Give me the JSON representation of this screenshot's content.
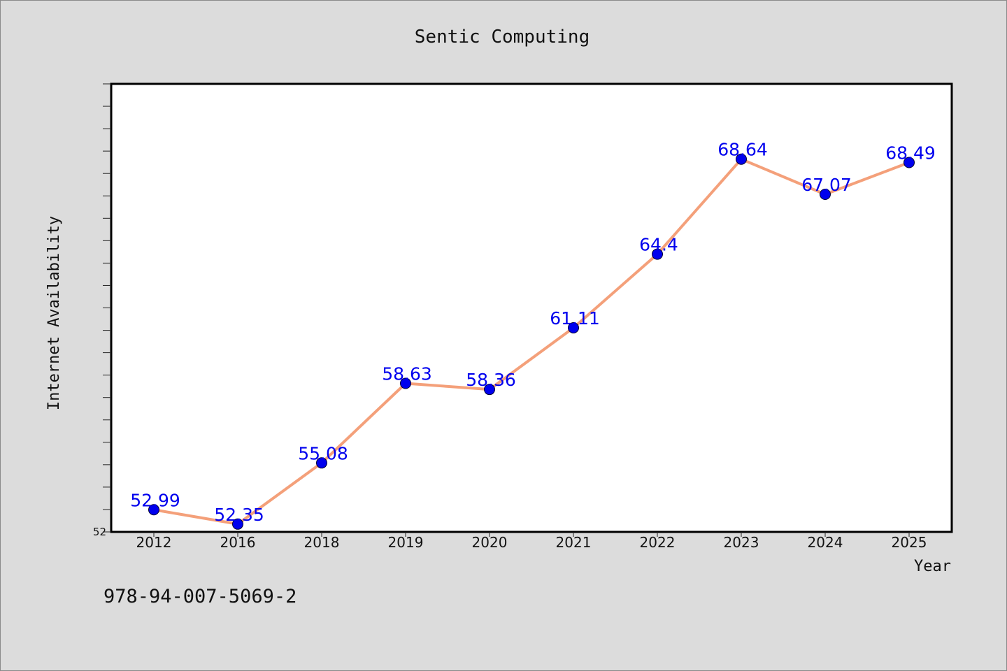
{
  "chart_data": {
    "type": "line",
    "title": "Sentic Computing",
    "xlabel": "Year",
    "ylabel": "Internet Availability",
    "categories": [
      "2012",
      "2016",
      "2018",
      "2019",
      "2020",
      "2021",
      "2022",
      "2023",
      "2024",
      "2025"
    ],
    "series": [
      {
        "values": [
          52.99,
          52.35,
          55.08,
          58.63,
          58.36,
          61.11,
          64.4,
          68.64,
          67.07,
          68.49
        ],
        "labels": [
          "52.99",
          "52.35",
          "55.08",
          "58.63",
          "58.36",
          "61.11",
          "64.4",
          "68.64",
          "67.07",
          "68.49"
        ]
      }
    ],
    "ylim": [
      52,
      72
    ],
    "y_tick_labels": [
      "52"
    ],
    "grid": false,
    "colors": {
      "line": "#f4a07a",
      "marker": "#0000ee",
      "data_label": "#0000ee"
    }
  },
  "footer": {
    "isbn": "978-94-007-5069-2"
  }
}
